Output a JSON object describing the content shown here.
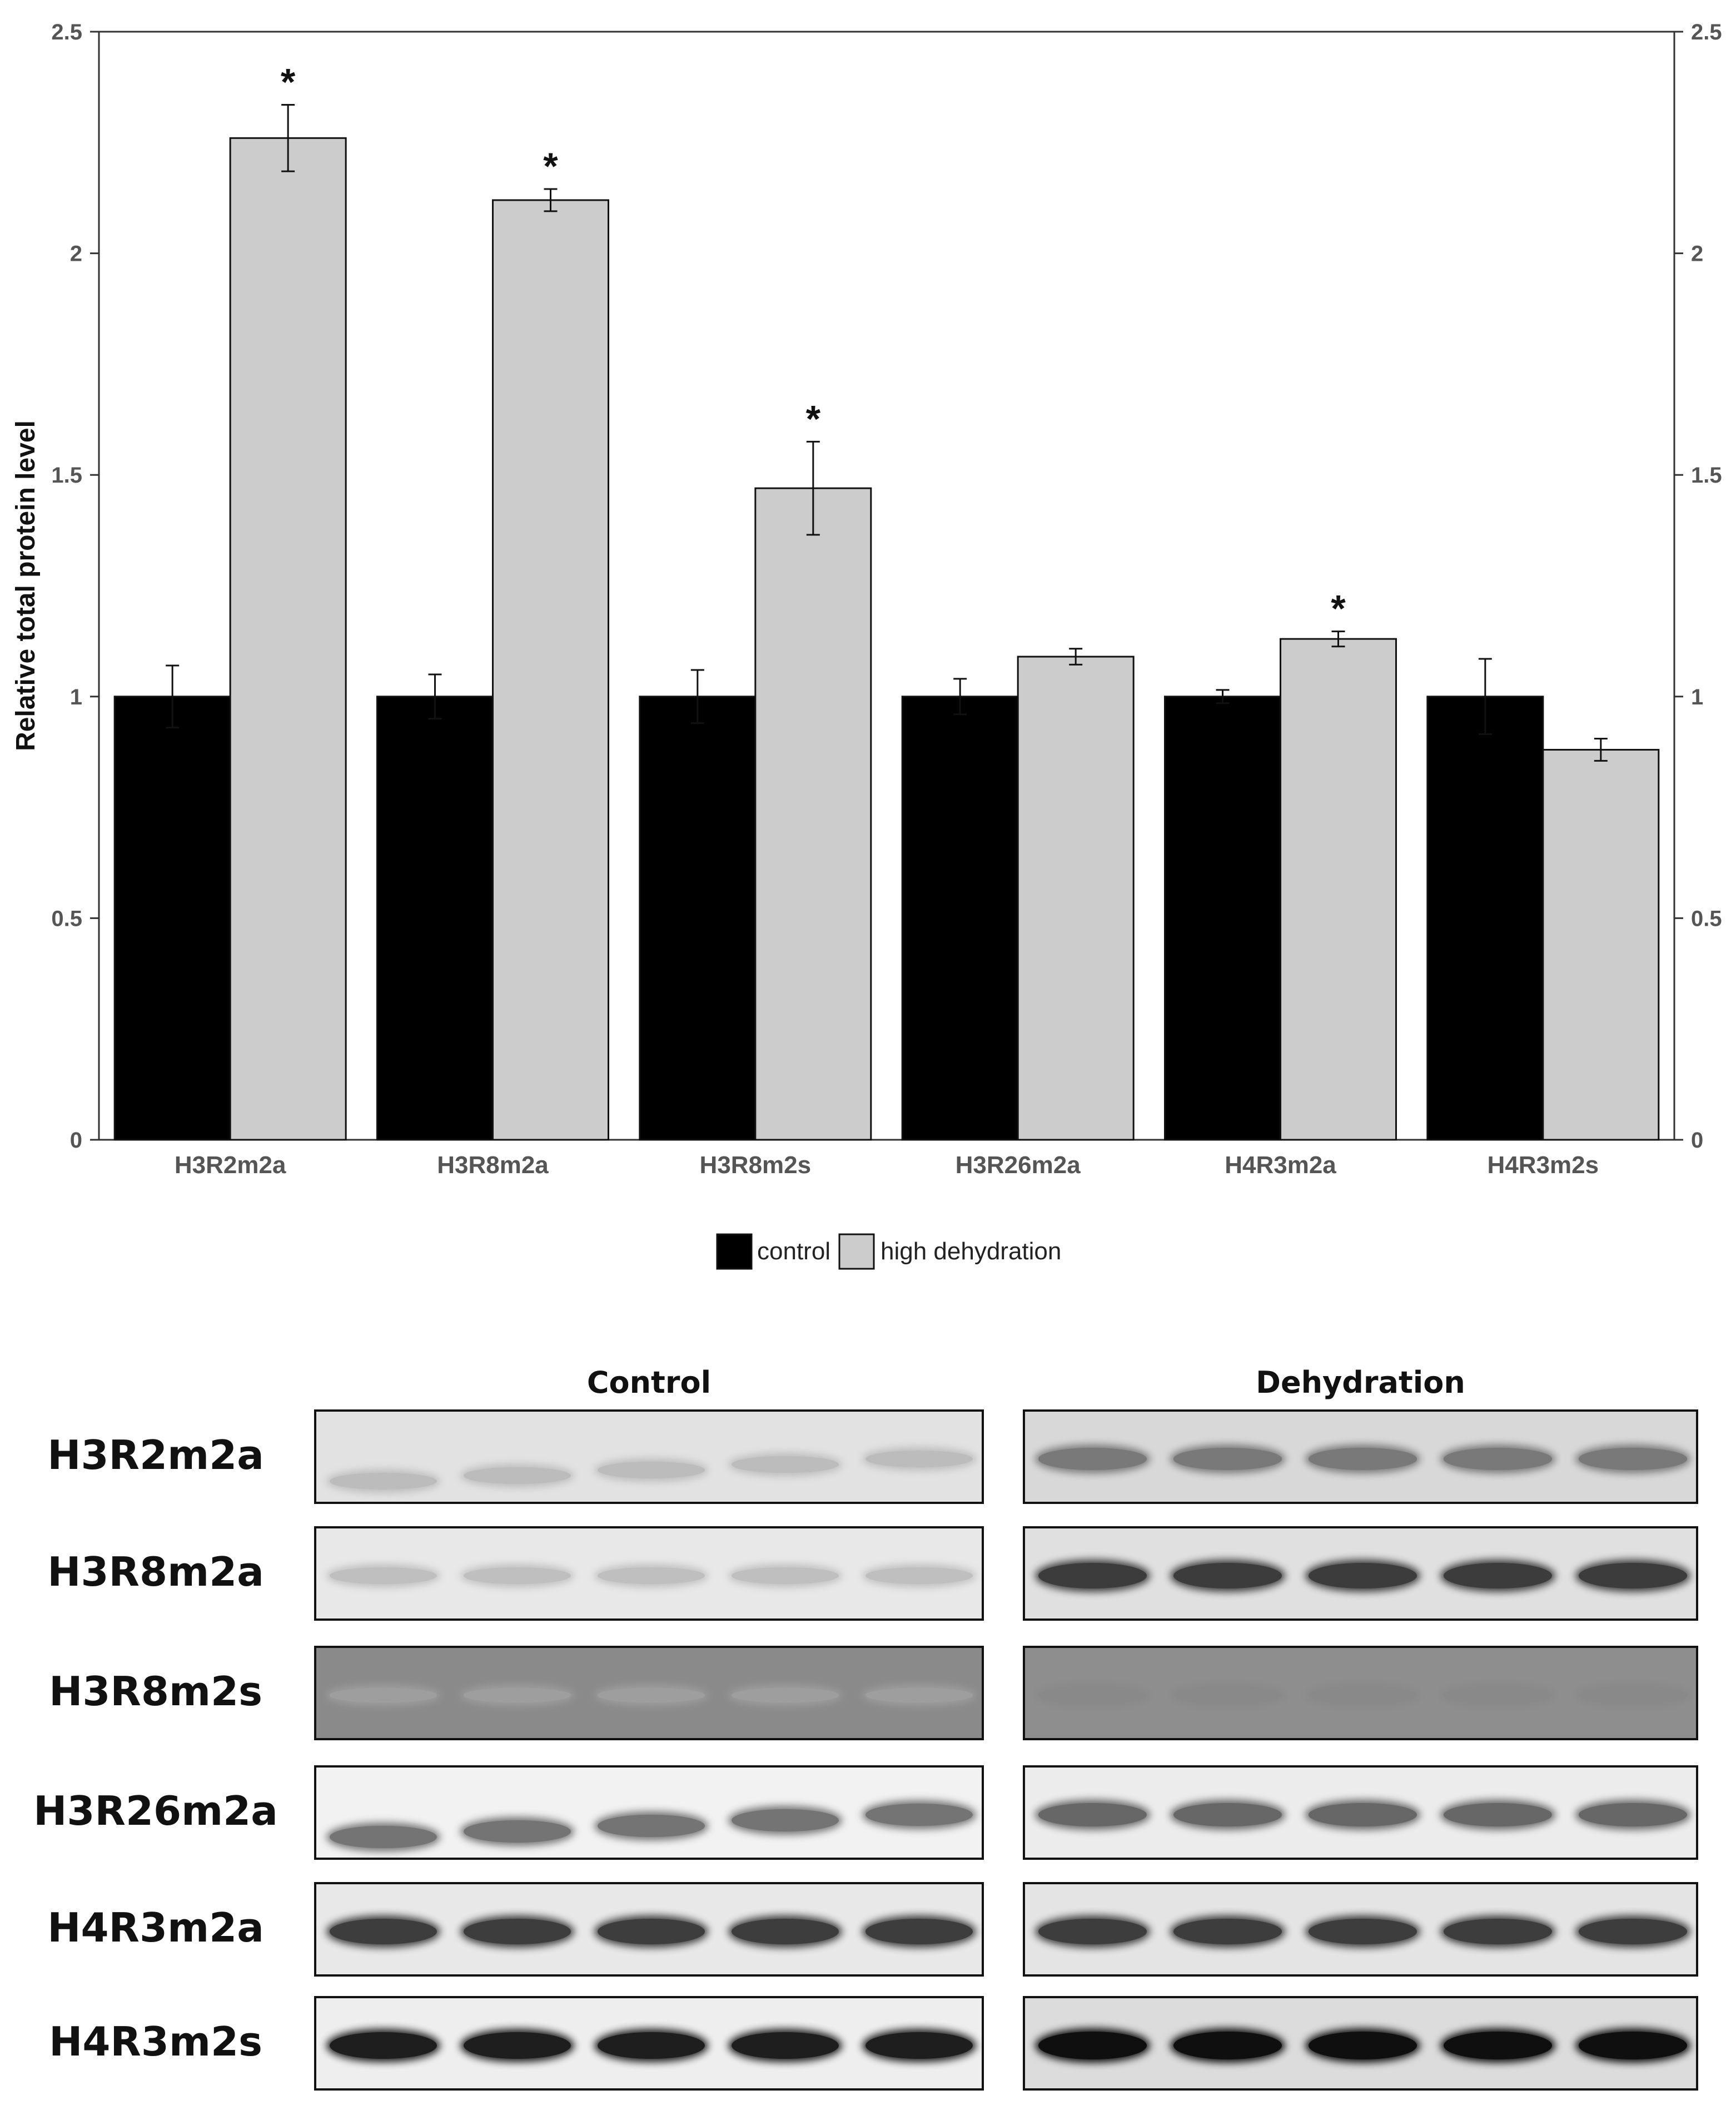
{
  "chart_data": {
    "type": "bar",
    "categories": [
      "H3R2m2a",
      "H3R8m2a",
      "H3R8m2s",
      "H3R26m2a",
      "H4R3m2a",
      "H4R3m2s"
    ],
    "series": [
      {
        "name": "control",
        "color": "#000000",
        "values": [
          1.0,
          1.0,
          1.0,
          1.0,
          1.0,
          1.0
        ],
        "errors": [
          0.07,
          0.05,
          0.06,
          0.04,
          0.015,
          0.085
        ]
      },
      {
        "name": "high dehydration",
        "color": "#cccccc",
        "values": [
          2.26,
          2.12,
          1.47,
          1.09,
          1.13,
          0.88
        ],
        "errors": [
          0.075,
          0.025,
          0.105,
          0.018,
          0.017,
          0.025
        ]
      }
    ],
    "significance": [
      "*",
      "*",
      "*",
      "",
      "*",
      ""
    ],
    "ylabel": "Relative total protein level",
    "xlabel": "",
    "ylim": [
      0,
      2.5
    ],
    "yticks": [
      "0",
      "0.5",
      "1",
      "1.5",
      "2",
      "2.5"
    ],
    "legend_position": "bottom",
    "grid": false
  },
  "blot": {
    "groups": [
      "Control",
      "Dehydration"
    ],
    "rows": [
      {
        "label": "H3R2m2a",
        "control_intensity": 0.25,
        "dehydration_intensity": 0.6,
        "control_bg": "#e2e2e2",
        "dehydration_bg": "#d8d8d8"
      },
      {
        "label": "H3R8m2a",
        "control_intensity": 0.25,
        "dehydration_intensity": 0.85,
        "control_bg": "#e8e8e8",
        "dehydration_bg": "#e0e0e0"
      },
      {
        "label": "H3R8m2s",
        "control_intensity": 0.05,
        "dehydration_intensity": 0.35,
        "control_bg": "#8a8a8a",
        "dehydration_bg": "#8e8e8e"
      },
      {
        "label": "H3R26m2a",
        "control_intensity": 0.65,
        "dehydration_intensity": 0.7,
        "control_bg": "#f2f2f2",
        "dehydration_bg": "#ececec"
      },
      {
        "label": "H4R3m2a",
        "control_intensity": 0.85,
        "dehydration_intensity": 0.85,
        "control_bg": "#e8e8e8",
        "dehydration_bg": "#e4e4e4"
      },
      {
        "label": "H4R3m2s",
        "control_intensity": 0.95,
        "dehydration_intensity": 1.0,
        "control_bg": "#eeeeee",
        "dehydration_bg": "#dcdcdc"
      }
    ]
  }
}
